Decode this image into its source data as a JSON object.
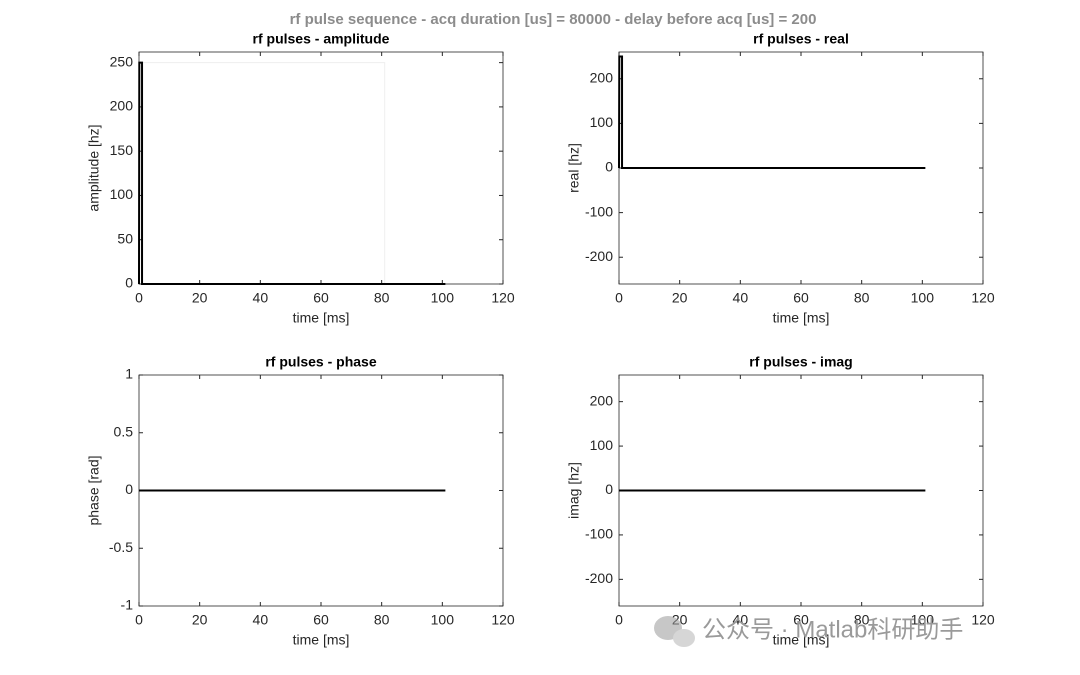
{
  "title": "rf pulse sequence - acq duration [us] = 80000 - delay before acq [us] = 200",
  "watermark": "公众号 · Matlab科研助手",
  "chart_data": [
    {
      "type": "line",
      "title": "rf pulses - amplitude",
      "xlabel": "time [ms]",
      "ylabel": "amplitude [hz]",
      "xlim": [
        0,
        120
      ],
      "xticks": [
        0,
        20,
        40,
        60,
        80,
        100,
        120
      ],
      "ylim": [
        0,
        262
      ],
      "yticks": [
        0,
        50,
        100,
        150,
        200,
        250
      ],
      "series": [
        {
          "color": "#eeeeee",
          "x": [
            1,
            81,
            81
          ],
          "values": [
            250,
            250,
            0
          ]
        },
        {
          "color": "#000000",
          "x": [
            0,
            0.1,
            1,
            1,
            101
          ],
          "values": [
            0,
            250,
            250,
            0,
            0
          ]
        }
      ]
    },
    {
      "type": "line",
      "title": "rf pulses - real",
      "xlabel": "time [ms]",
      "ylabel": "real [hz]",
      "xlim": [
        0,
        120
      ],
      "xticks": [
        0,
        20,
        40,
        60,
        80,
        100,
        120
      ],
      "ylim": [
        -260,
        260
      ],
      "yticks": [
        -200,
        -100,
        0,
        100,
        200
      ],
      "series": [
        {
          "color": "#000000",
          "x": [
            0,
            0.1,
            1,
            1,
            101
          ],
          "values": [
            0,
            250,
            250,
            0,
            0
          ]
        }
      ]
    },
    {
      "type": "line",
      "title": "rf pulses - phase",
      "xlabel": "time [ms]",
      "ylabel": "phase [rad]",
      "xlim": [
        0,
        120
      ],
      "xticks": [
        0,
        20,
        40,
        60,
        80,
        100,
        120
      ],
      "ylim": [
        -1,
        1
      ],
      "yticks": [
        -1,
        -0.5,
        0,
        0.5,
        1
      ],
      "series": [
        {
          "color": "#000000",
          "x": [
            0,
            101
          ],
          "values": [
            0,
            0
          ]
        }
      ]
    },
    {
      "type": "line",
      "title": "rf pulses - imag",
      "xlabel": "time [ms]",
      "ylabel": "imag [hz]",
      "xlim": [
        0,
        120
      ],
      "xticks": [
        0,
        20,
        40,
        60,
        80,
        100,
        120
      ],
      "ylim": [
        -260,
        260
      ],
      "yticks": [
        -200,
        -100,
        0,
        100,
        200
      ],
      "series": [
        {
          "color": "#000000",
          "x": [
            0,
            101
          ],
          "values": [
            0,
            0
          ]
        }
      ]
    }
  ]
}
